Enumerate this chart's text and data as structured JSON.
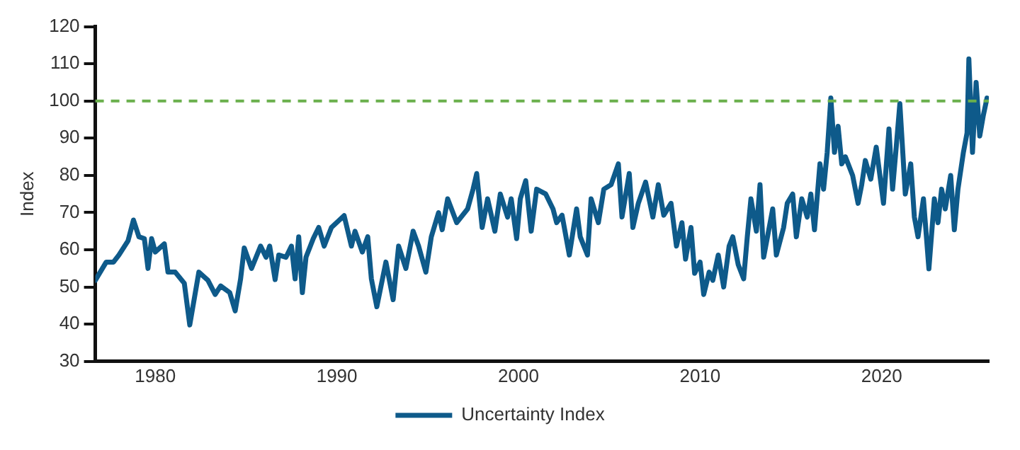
{
  "chart_data": {
    "type": "line",
    "ylabel": "Index",
    "x": [
      1976.7,
      1977.3,
      1977.7,
      1978.0,
      1978.5,
      1978.8,
      1979.1,
      1979.4,
      1979.6,
      1979.8,
      1980.0,
      1980.5,
      1980.7,
      1981.1,
      1981.6,
      1981.9,
      1982.4,
      1982.9,
      1983.3,
      1983.6,
      1984.1,
      1984.4,
      1984.7,
      1984.9,
      1985.3,
      1985.8,
      1986.1,
      1986.3,
      1986.6,
      1986.8,
      1987.2,
      1987.5,
      1987.7,
      1987.9,
      1988.1,
      1988.3,
      1988.7,
      1989.0,
      1989.3,
      1989.7,
      1990.4,
      1990.8,
      1991.0,
      1991.4,
      1991.7,
      1991.9,
      1992.2,
      1992.7,
      1993.1,
      1993.4,
      1993.8,
      1994.2,
      1994.5,
      1994.9,
      1995.2,
      1995.6,
      1995.8,
      1996.1,
      1996.6,
      1997.2,
      1997.5,
      1997.7,
      1998.0,
      1998.3,
      1998.7,
      1999.0,
      1999.4,
      1999.6,
      1999.9,
      2000.1,
      2000.4,
      2000.7,
      2001.0,
      2001.5,
      2001.9,
      2002.1,
      2002.4,
      2002.8,
      2003.2,
      2003.4,
      2003.8,
      2004.0,
      2004.4,
      2004.7,
      2005.1,
      2005.5,
      2005.7,
      2006.1,
      2006.3,
      2006.6,
      2007.0,
      2007.4,
      2007.7,
      2008.0,
      2008.4,
      2008.7,
      2009.0,
      2009.2,
      2009.5,
      2009.7,
      2010.0,
      2010.2,
      2010.5,
      2010.7,
      2011.0,
      2011.3,
      2011.6,
      2011.8,
      2012.1,
      2012.4,
      2012.6,
      2012.8,
      2013.1,
      2013.3,
      2013.5,
      2014.0,
      2014.2,
      2014.6,
      2014.8,
      2015.1,
      2015.3,
      2015.6,
      2015.9,
      2016.1,
      2016.3,
      2016.6,
      2016.8,
      2017.0,
      2017.2,
      2017.4,
      2017.6,
      2017.8,
      2018.0,
      2018.4,
      2018.7,
      2018.9,
      2019.1,
      2019.4,
      2019.7,
      2020.1,
      2020.4,
      2020.6,
      2020.8,
      2021.0,
      2021.3,
      2021.6,
      2021.8,
      2022.0,
      2022.3,
      2022.6,
      2022.9,
      2023.1,
      2023.3,
      2023.5,
      2023.8,
      2024.0,
      2024.2,
      2024.5,
      2024.7,
      2024.8,
      2025.0,
      2025.2,
      2025.4,
      2025.6,
      2025.8
    ],
    "series": [
      {
        "name": "Uncertainty Index",
        "color": "#0e5a8a",
        "values": [
          51.8,
          56.7,
          56.7,
          58.6,
          62.4,
          68,
          63.5,
          63,
          55,
          63,
          59.4,
          61.6,
          54,
          54,
          51,
          39.8,
          54,
          51.8,
          48,
          50.3,
          48.5,
          43.6,
          52.2,
          60.5,
          55,
          61,
          58,
          61,
          52,
          58.6,
          58,
          61,
          52.2,
          63.5,
          48.5,
          58,
          63,
          66,
          61,
          66,
          69.2,
          61,
          65,
          59.4,
          63.5,
          52.2,
          44.7,
          56.7,
          46.6,
          61,
          55,
          65,
          61,
          54,
          63.5,
          70,
          65.4,
          73.7,
          67.3,
          71,
          76.3,
          80.5,
          66,
          73.7,
          65,
          75,
          68.8,
          73.7,
          63,
          73.7,
          78.6,
          65,
          76.3,
          75,
          71,
          67.3,
          69.3,
          58.6,
          71,
          63.5,
          58.6,
          73.7,
          67.3,
          76.3,
          77.5,
          83.1,
          68.8,
          80.5,
          66,
          72.5,
          78.2,
          68.8,
          77.5,
          69.3,
          72.5,
          61,
          67.3,
          57.5,
          66,
          53.7,
          56.7,
          48,
          54,
          51.8,
          58.6,
          50,
          61,
          63.5,
          56,
          52.2,
          63.5,
          73.7,
          65,
          77.5,
          58,
          71,
          58.6,
          66,
          72.5,
          75,
          63.5,
          73.7,
          68.8,
          75,
          65.4,
          83.1,
          76.3,
          86.2,
          100.8,
          86.2,
          93.2,
          83.1,
          85,
          80,
          72.5,
          77.5,
          84,
          79,
          87.6,
          72.5,
          92.5,
          76.3,
          87.6,
          99.3,
          75,
          83.1,
          68.8,
          63.5,
          73.7,
          54.9,
          73.7,
          67.3,
          76.3,
          71,
          80,
          65.4,
          76.3,
          86.2,
          91.4,
          111.3,
          86.2,
          105,
          90.6,
          96.2,
          100.8
        ]
      }
    ],
    "xlim": [
      1976.7,
      2025.9
    ],
    "xticks": [
      1980,
      1990,
      2000,
      2010,
      2020
    ],
    "ylim": [
      30,
      120
    ],
    "yticks": [
      30,
      40,
      50,
      60,
      70,
      80,
      90,
      100,
      110,
      120
    ],
    "ref_lines": [
      {
        "axis": "y",
        "value": 100,
        "color": "#6ab04c",
        "line_style": "dashed"
      }
    ],
    "grid": false,
    "legend": "bottom",
    "marker": "none",
    "line_style": "solid"
  }
}
